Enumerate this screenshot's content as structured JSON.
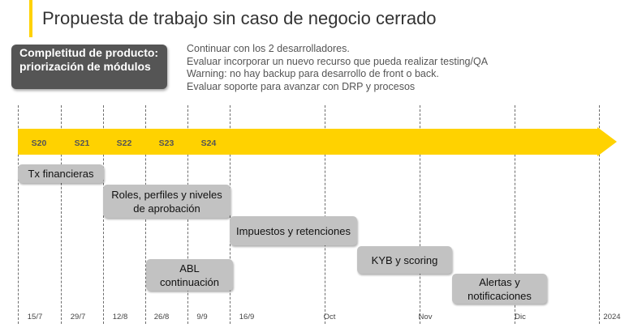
{
  "title": "Propuesta de trabajo sin caso de negocio cerrado",
  "focus_box": {
    "text": "Completitud de producto: priorización de módulos"
  },
  "notes": [
    "Continuar con los 2 desarrolladores.",
    "Evaluar incorporar un nuevo recurso que pueda realizar testing/QA",
    "Warning: no hay backup para desarrollo de front o back.",
    "Evaluar soporte para avanzar con DRP y procesos"
  ],
  "timeline": {
    "sprints": [
      "S20",
      "S21",
      "S22",
      "S23",
      "S24"
    ],
    "tasks": [
      "Tx  financieras",
      "Roles, perfiles y niveles de aprobación",
      "Impuestos y retenciones",
      "ABL continuación",
      "KYB y scoring",
      "Alertas y notificaciones"
    ],
    "dates": [
      "15/7",
      "29/7",
      "12/8",
      "26/8",
      "9/9",
      "16/9",
      "Oct",
      "Nov",
      "Dic",
      "2024"
    ]
  },
  "colors": {
    "accent": "#FFD200",
    "focus_box": "#555555",
    "task_box": "#C2C2C2"
  }
}
